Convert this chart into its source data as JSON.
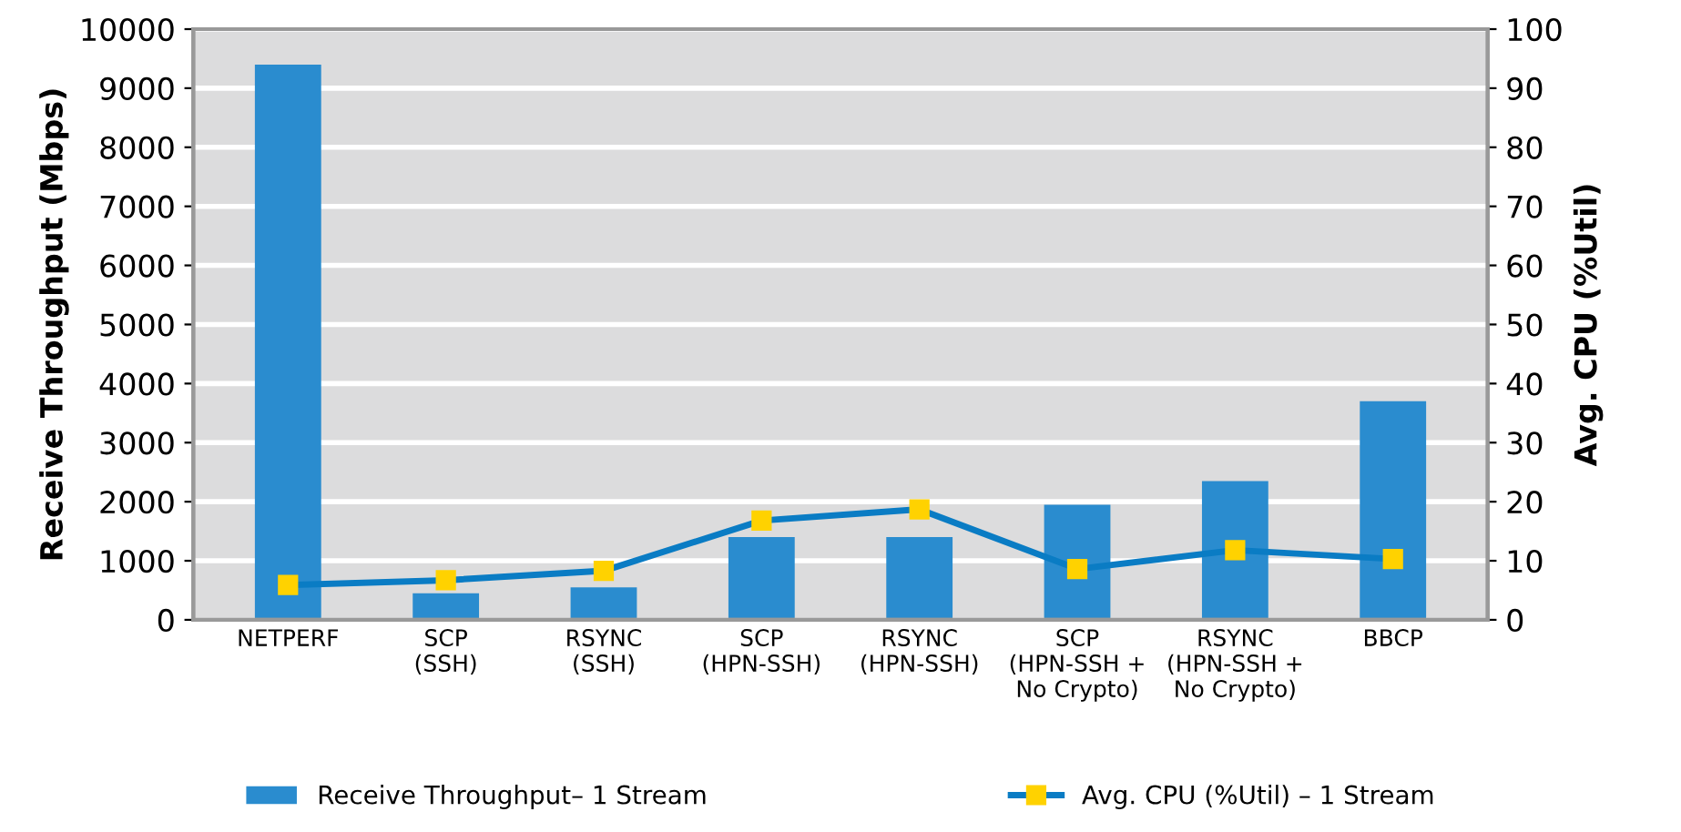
{
  "chart_data": {
    "type": "bar",
    "categories": [
      "NETPERF",
      "SCP\n(SSH)",
      "RSYNC\n(SSH)",
      "SCP\n(HPN-SSH)",
      "RSYNC\n(HPN-SSH)",
      "SCP\n(HPN-SSH +\nNo Crypto)",
      "RSYNC\n(HPN-SSH +\nNo Crypto)",
      "BBCP"
    ],
    "series": [
      {
        "name": "Receive Throughput– 1 Stream",
        "color": "#2a8ccf",
        "values": [
          9400,
          450,
          550,
          1400,
          1400,
          1950,
          2350,
          3700
        ]
      },
      {
        "name": "Avg. CPU (%Util) – 1 Stream",
        "type": "line",
        "axis": "y2",
        "color": "#0a7cc4",
        "marker": "square",
        "values": [
          5.9,
          6.7,
          8.3,
          16.8,
          18.7,
          8.6,
          11.8,
          10.3
        ]
      }
    ],
    "ylabel": "Receive Throughput (Mbps)",
    "y2label": "Avg. CPU (%Util)",
    "ylim": [
      0,
      10000
    ],
    "yticks": [
      0,
      1000,
      2000,
      3000,
      4000,
      5000,
      6000,
      7000,
      8000,
      9000,
      10000
    ],
    "y2lim": [
      0,
      100
    ],
    "y2ticks": [
      0,
      10,
      20,
      30,
      40,
      50,
      60,
      70,
      80,
      90,
      100
    ],
    "grid": "y",
    "legend": "bottom"
  }
}
